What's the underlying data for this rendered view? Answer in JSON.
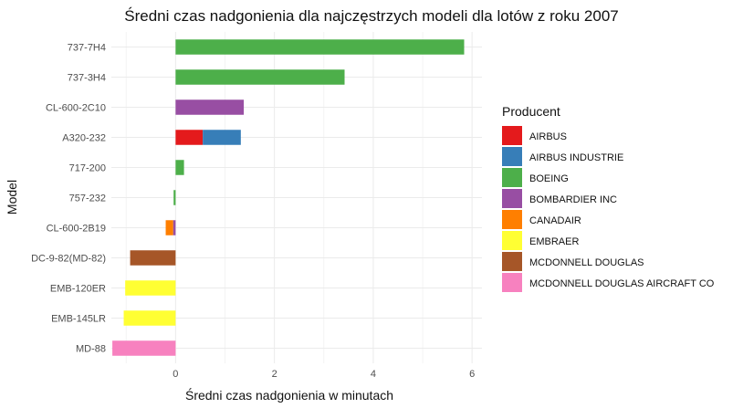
{
  "chart_data": {
    "type": "bar",
    "orientation": "horizontal",
    "stacked": true,
    "title": "Średni czas nadgonienia dla najczęstrzych modeli dla lotów z roku 2007",
    "xlabel": "Średni czas nadgonienia w minutach",
    "ylabel": "Model",
    "xlim": [
      -1.3,
      6.2
    ],
    "xticks": [
      0,
      2,
      4,
      6
    ],
    "grid": true,
    "legend_position": "right",
    "legend_title": "Producent",
    "categories": [
      "737-7H4",
      "737-3H4",
      "CL-600-2C10",
      "A320-232",
      "717-200",
      "757-232",
      "CL-600-2B19",
      "DC-9-82(MD-82)",
      "EMB-120ER",
      "EMB-145LR",
      "MD-88"
    ],
    "series": [
      {
        "name": "AIRBUS",
        "color": "#e41a1c",
        "values": [
          0,
          0,
          0,
          0.55,
          0,
          0,
          0,
          0,
          0,
          0,
          0
        ]
      },
      {
        "name": "AIRBUS INDUSTRIE",
        "color": "#377eb8",
        "values": [
          0,
          0,
          0,
          0.77,
          0,
          0,
          0,
          0,
          0,
          0,
          0
        ]
      },
      {
        "name": "BOEING",
        "color": "#4daf4a",
        "values": [
          5.84,
          3.42,
          0,
          0,
          0.17,
          -0.04,
          0,
          0,
          0,
          0,
          0
        ]
      },
      {
        "name": "BOMBARDIER INC",
        "color": "#984ea3",
        "values": [
          0,
          0,
          1.38,
          0,
          0,
          0,
          -0.05,
          0,
          0,
          0,
          0
        ]
      },
      {
        "name": "CANADAIR",
        "color": "#ff7f00",
        "values": [
          0,
          0,
          0,
          0,
          0,
          0,
          -0.15,
          0,
          0,
          0,
          0
        ]
      },
      {
        "name": "EMBRAER",
        "color": "#ffff33",
        "values": [
          0,
          0,
          0,
          0,
          0,
          0,
          0,
          0,
          -1.02,
          -1.05,
          0
        ]
      },
      {
        "name": "MCDONNELL DOUGLAS",
        "color": "#a65628",
        "values": [
          0,
          0,
          0,
          0,
          0,
          0,
          0,
          -0.92,
          0,
          0,
          0
        ]
      },
      {
        "name": "MCDONNELL DOUGLAS AIRCRAFT CO",
        "color": "#f781bf",
        "values": [
          0,
          0,
          0,
          0,
          0,
          0,
          0,
          0,
          0,
          0,
          -1.28
        ]
      }
    ]
  }
}
